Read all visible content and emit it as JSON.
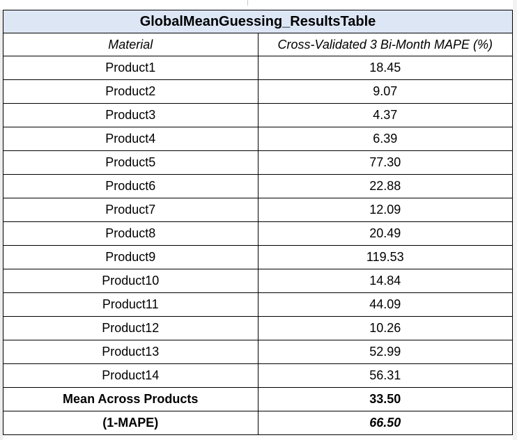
{
  "table": {
    "title": "GlobalMeanGuessing_ResultsTable",
    "columns": [
      "Material",
      "Cross-Validated 3 Bi-Month MAPE (%)"
    ],
    "rows": [
      [
        "Product1",
        "18.45"
      ],
      [
        "Product2",
        "9.07"
      ],
      [
        "Product3",
        "4.37"
      ],
      [
        "Product4",
        "6.39"
      ],
      [
        "Product5",
        "77.30"
      ],
      [
        "Product6",
        "22.88"
      ],
      [
        "Product7",
        "12.09"
      ],
      [
        "Product8",
        "20.49"
      ],
      [
        "Product9",
        "119.53"
      ],
      [
        "Product10",
        "14.84"
      ],
      [
        "Product11",
        "44.09"
      ],
      [
        "Product12",
        "10.26"
      ],
      [
        "Product13",
        "52.99"
      ],
      [
        "Product14",
        "56.31"
      ]
    ],
    "summary": [
      [
        "Mean Across Products",
        "33.50"
      ],
      [
        "(1-MAPE)",
        "66.50"
      ]
    ]
  },
  "colors": {
    "title_background": "#dde6f5",
    "border": "#000000"
  }
}
